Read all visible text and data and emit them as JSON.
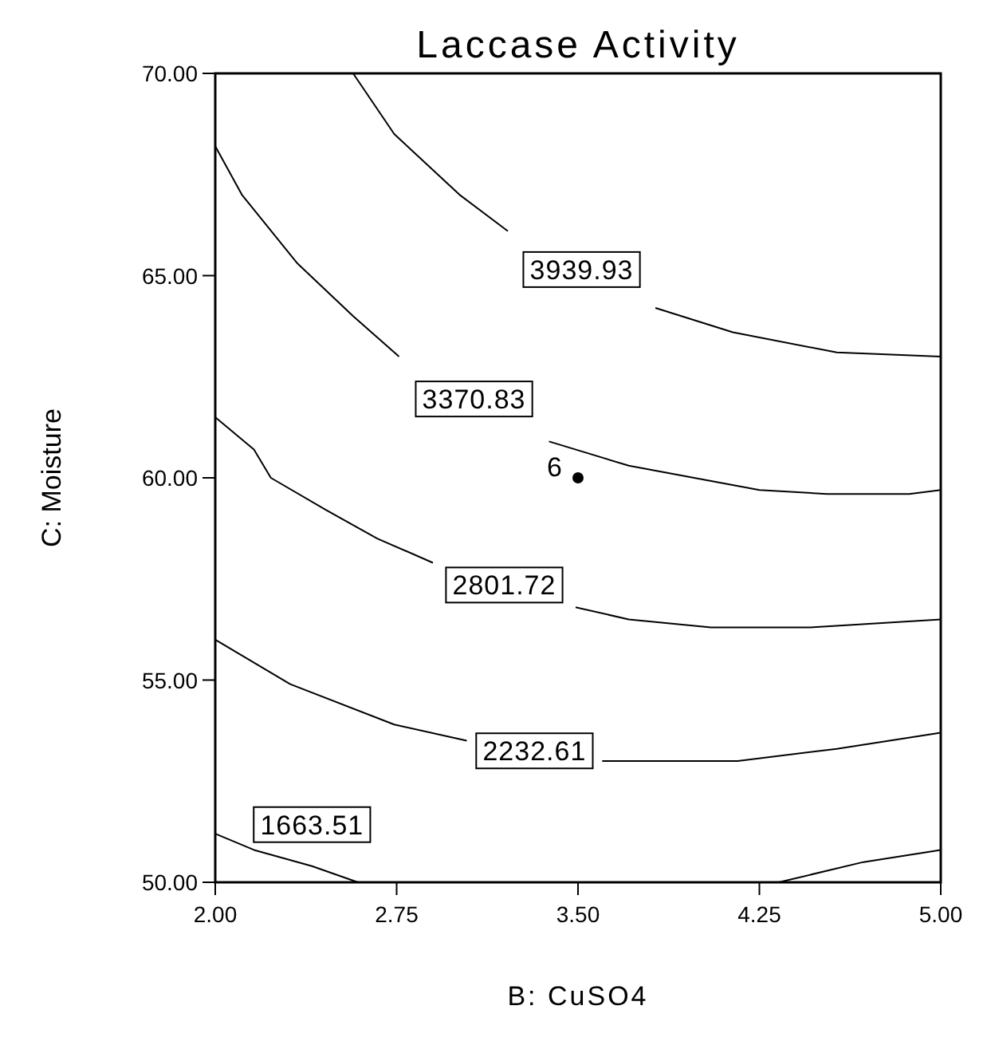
{
  "chart_data": {
    "type": "line",
    "title": "Laccase Activity",
    "xlabel": "B: CuSO4",
    "ylabel": "C: Moisture",
    "xlim": [
      2,
      5
    ],
    "ylim": [
      50,
      70
    ],
    "xticks": [
      {
        "value": 2,
        "label": "2.00"
      },
      {
        "value": 2.75,
        "label": "2.75"
      },
      {
        "value": 3.5,
        "label": "3.50"
      },
      {
        "value": 4.25,
        "label": "4.25"
      },
      {
        "value": 5,
        "label": "5.00"
      }
    ],
    "yticks": [
      {
        "value": 50,
        "label": "50.00"
      },
      {
        "value": 55,
        "label": "55.00"
      },
      {
        "value": 60,
        "label": "60.00"
      },
      {
        "value": 65,
        "label": "65.00"
      },
      {
        "value": 70,
        "label": "70.00"
      }
    ],
    "grid": false,
    "marker": "none",
    "line_style": "solid",
    "series": [
      {
        "name": "3939.93",
        "color": "#000000",
        "x": [
          2.57,
          2.74,
          3.01,
          3.21,
          3.5,
          3.82,
          4.14,
          4.57,
          5.0
        ],
        "values": [
          70,
          68.5,
          67.0,
          66.1,
          null,
          64.2,
          63.6,
          63.1,
          63.0
        ]
      },
      {
        "name": "3370.83",
        "color": "#000000",
        "x": [
          2.0,
          2.11,
          2.34,
          2.57,
          2.76,
          3.05,
          3.38,
          3.71,
          4.25,
          4.53,
          4.87,
          5.0
        ],
        "values": [
          68.2,
          67.0,
          65.3,
          64.0,
          63.0,
          null,
          60.9,
          60.3,
          59.7,
          59.6,
          59.6,
          59.7
        ]
      },
      {
        "name": "2801.72",
        "color": "#000000",
        "x": [
          2.0,
          2.16,
          2.23,
          2.46,
          2.67,
          2.9,
          3.2,
          3.49,
          3.71,
          4.05,
          4.46,
          5.0
        ],
        "values": [
          61.5,
          60.7,
          60.0,
          59.2,
          58.5,
          57.9,
          null,
          56.8,
          56.5,
          56.3,
          56.3,
          56.5
        ]
      },
      {
        "name": "2232.61",
        "color": "#000000",
        "x": [
          2.0,
          2.31,
          2.74,
          3.04,
          3.32,
          3.6,
          4.16,
          4.57,
          5.0
        ],
        "values": [
          56.0,
          54.9,
          53.9,
          53.5,
          null,
          53.0,
          53.0,
          53.3,
          53.7
        ]
      },
      {
        "name": "1663.51",
        "color": "#000000",
        "x": [
          2.0,
          2.16,
          2.4,
          2.59
        ],
        "values": [
          51.2,
          50.8,
          50.4,
          50.0
        ]
      },
      {
        "color": "#000000",
        "x": [
          4.33,
          4.68,
          5.0
        ],
        "values": [
          50.0,
          50.5,
          50.8
        ]
      },
      {
        "type": "scatter",
        "color": "#000000",
        "marker": "circle",
        "x": [
          3.5
        ],
        "values": [
          60
        ]
      }
    ],
    "annotations": [
      {
        "text": "6",
        "x": 3.5,
        "y": 60
      }
    ]
  }
}
